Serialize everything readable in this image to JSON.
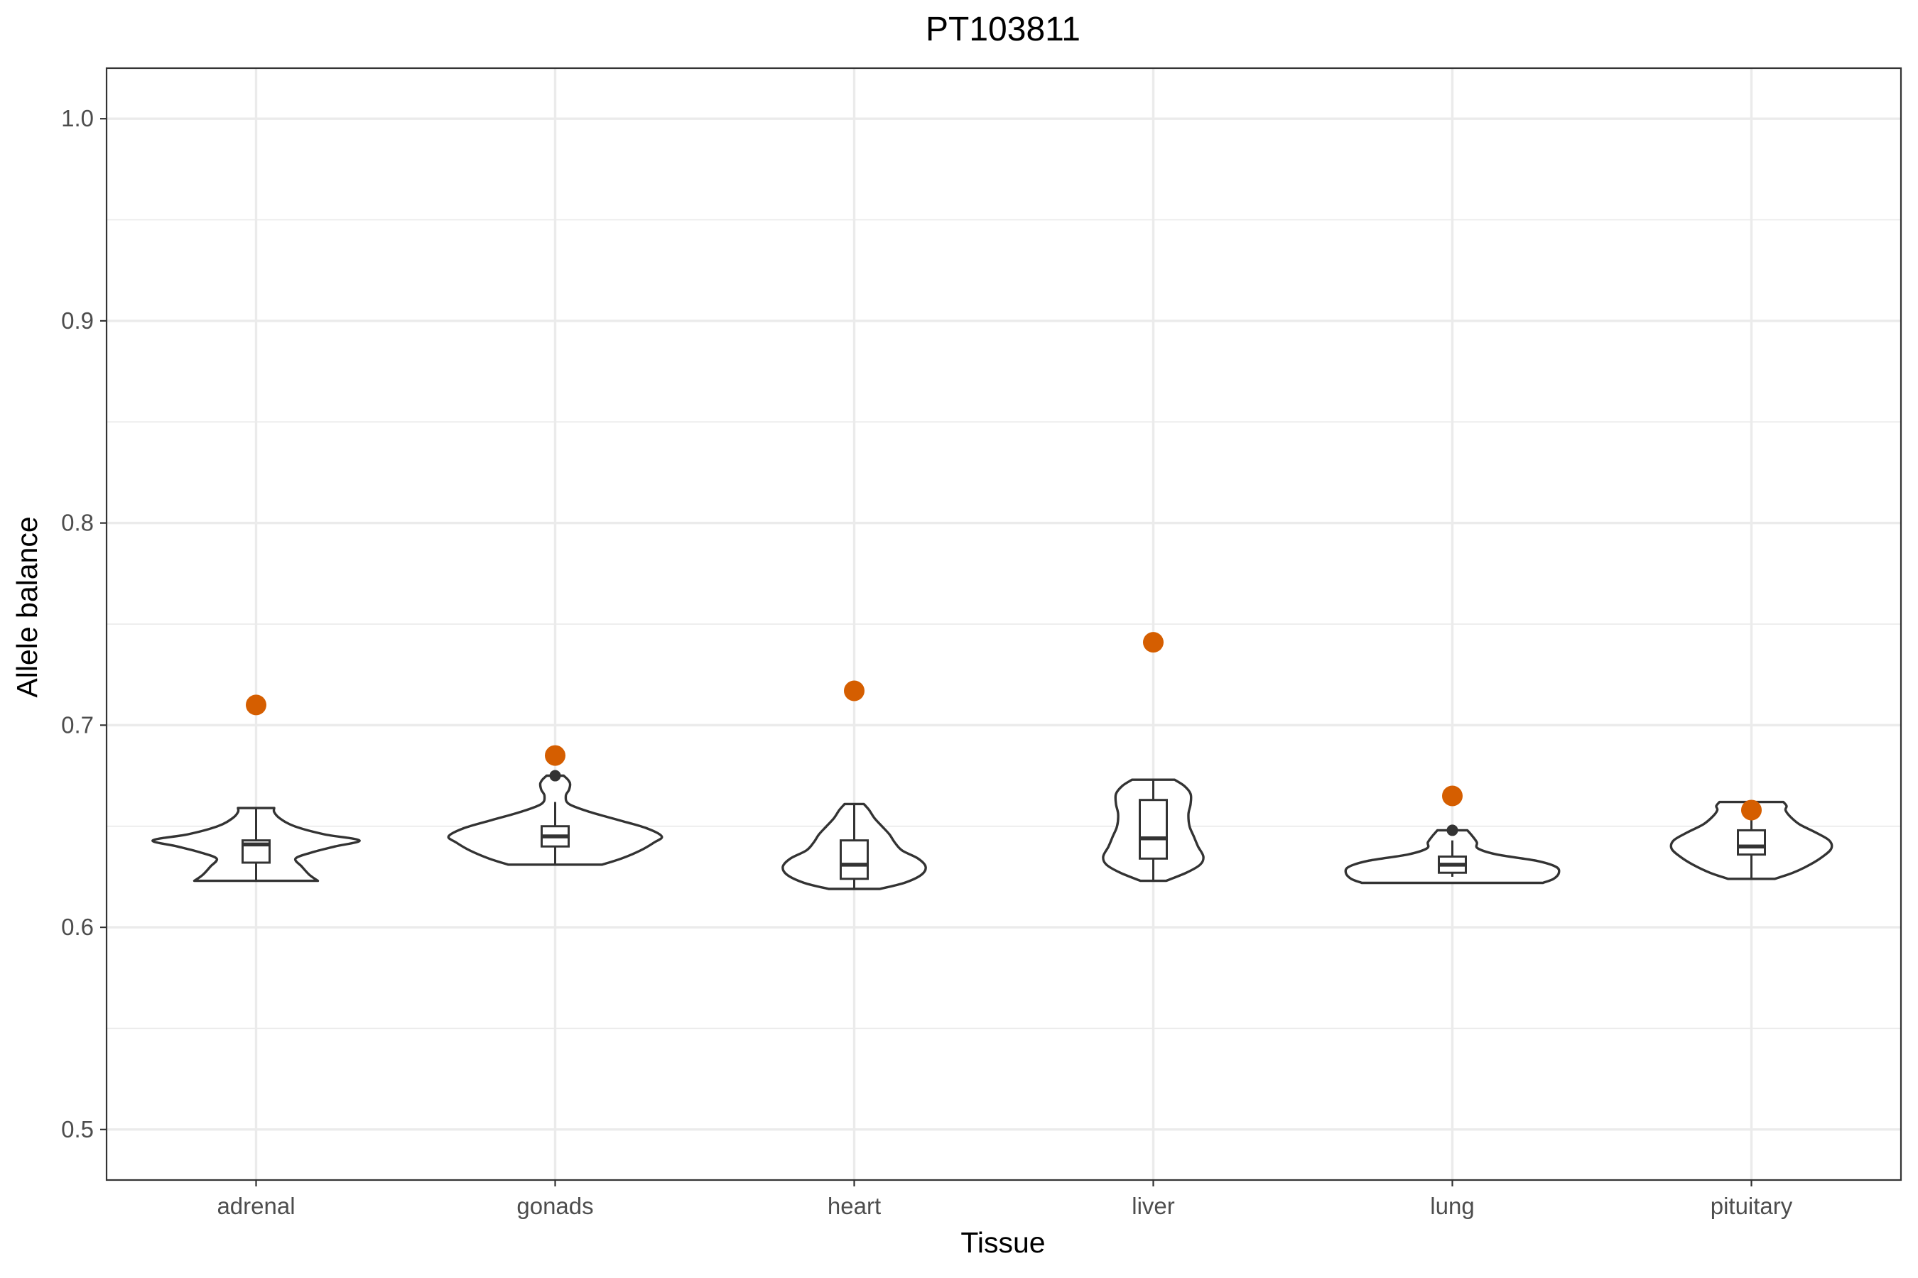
{
  "chart_data": {
    "type": "violin",
    "title": "PT103811",
    "xlabel": "Tissue",
    "ylabel": "Allele balance",
    "ylim": [
      0.475,
      1.025
    ],
    "yticks": [
      0.5,
      0.6,
      0.7,
      0.8,
      0.9,
      1.0
    ],
    "ytick_labels": [
      "0.5",
      "0.6",
      "0.7",
      "0.8",
      "0.9",
      "1.0"
    ],
    "grid": true,
    "categories": [
      "adrenal",
      "gonads",
      "heart",
      "liver",
      "lung",
      "pituitary"
    ],
    "colors": {
      "focal_point": "#d55e00",
      "outline": "#333333",
      "grid": "#ebebeb"
    },
    "groups": [
      {
        "tissue": "adrenal",
        "box": {
          "min": 0.623,
          "q1": 0.632,
          "median": 0.641,
          "q3": 0.643,
          "max": 0.659
        },
        "outliers": [],
        "focal": 0.71,
        "violin": [
          [
            0.623,
            0.58
          ],
          [
            0.626,
            0.5
          ],
          [
            0.63,
            0.43
          ],
          [
            0.634,
            0.37
          ],
          [
            0.637,
            0.52
          ],
          [
            0.64,
            0.74
          ],
          [
            0.643,
            0.97
          ],
          [
            0.646,
            0.64
          ],
          [
            0.65,
            0.36
          ],
          [
            0.654,
            0.22
          ],
          [
            0.657,
            0.17
          ],
          [
            0.659,
            0.17
          ]
        ]
      },
      {
        "tissue": "gonads",
        "box": {
          "min": 0.631,
          "q1": 0.64,
          "median": 0.645,
          "q3": 0.65,
          "max": 0.662
        },
        "outliers": [
          0.675
        ],
        "focal": 0.685,
        "violin": [
          [
            0.631,
            0.44
          ],
          [
            0.634,
            0.62
          ],
          [
            0.638,
            0.8
          ],
          [
            0.642,
            0.93
          ],
          [
            0.645,
            1.0
          ],
          [
            0.649,
            0.86
          ],
          [
            0.653,
            0.6
          ],
          [
            0.657,
            0.33
          ],
          [
            0.661,
            0.13
          ],
          [
            0.665,
            0.1
          ],
          [
            0.668,
            0.13
          ],
          [
            0.671,
            0.14
          ],
          [
            0.673,
            0.12
          ],
          [
            0.675,
            0.08
          ]
        ]
      },
      {
        "tissue": "heart",
        "box": {
          "min": 0.619,
          "q1": 0.624,
          "median": 0.631,
          "q3": 0.643,
          "max": 0.661
        },
        "outliers": [],
        "focal": 0.717,
        "violin": [
          [
            0.619,
            0.24
          ],
          [
            0.622,
            0.47
          ],
          [
            0.626,
            0.63
          ],
          [
            0.63,
            0.67
          ],
          [
            0.634,
            0.6
          ],
          [
            0.638,
            0.45
          ],
          [
            0.642,
            0.38
          ],
          [
            0.646,
            0.33
          ],
          [
            0.65,
            0.26
          ],
          [
            0.654,
            0.19
          ],
          [
            0.658,
            0.14
          ],
          [
            0.661,
            0.09
          ]
        ]
      },
      {
        "tissue": "liver",
        "box": {
          "min": 0.623,
          "q1": 0.634,
          "median": 0.644,
          "q3": 0.663,
          "max": 0.673
        },
        "outliers": [],
        "focal": 0.741,
        "violin": [
          [
            0.623,
            0.12
          ],
          [
            0.627,
            0.31
          ],
          [
            0.631,
            0.44
          ],
          [
            0.635,
            0.47
          ],
          [
            0.64,
            0.42
          ],
          [
            0.645,
            0.38
          ],
          [
            0.65,
            0.34
          ],
          [
            0.656,
            0.33
          ],
          [
            0.661,
            0.35
          ],
          [
            0.666,
            0.35
          ],
          [
            0.67,
            0.29
          ],
          [
            0.673,
            0.2
          ]
        ]
      },
      {
        "tissue": "lung",
        "box": {
          "min": 0.625,
          "q1": 0.627,
          "median": 0.631,
          "q3": 0.635,
          "max": 0.643
        },
        "outliers": [
          0.648
        ],
        "focal": 0.665,
        "violin": [
          [
            0.622,
            0.85
          ],
          [
            0.624,
            0.95
          ],
          [
            0.627,
            1.0
          ],
          [
            0.63,
            0.97
          ],
          [
            0.633,
            0.78
          ],
          [
            0.636,
            0.42
          ],
          [
            0.639,
            0.24
          ],
          [
            0.642,
            0.23
          ],
          [
            0.645,
            0.19
          ],
          [
            0.648,
            0.14
          ]
        ]
      },
      {
        "tissue": "pituitary",
        "box": {
          "min": 0.624,
          "q1": 0.636,
          "median": 0.64,
          "q3": 0.648,
          "max": 0.662
        },
        "outliers": [],
        "focal": 0.658,
        "violin": [
          [
            0.624,
            0.22
          ],
          [
            0.627,
            0.39
          ],
          [
            0.631,
            0.55
          ],
          [
            0.635,
            0.67
          ],
          [
            0.639,
            0.75
          ],
          [
            0.643,
            0.73
          ],
          [
            0.647,
            0.6
          ],
          [
            0.651,
            0.45
          ],
          [
            0.655,
            0.36
          ],
          [
            0.658,
            0.32
          ],
          [
            0.66,
            0.33
          ],
          [
            0.662,
            0.3
          ]
        ]
      }
    ]
  }
}
